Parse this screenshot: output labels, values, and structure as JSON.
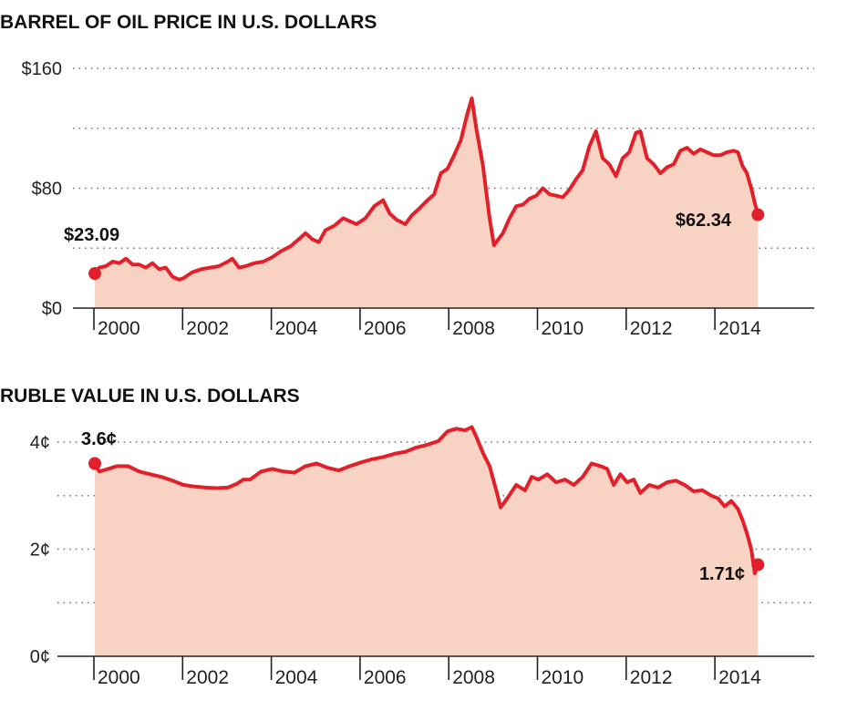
{
  "chart_data": [
    {
      "type": "area",
      "title": "BARREL OF OIL PRICE IN U.S. DOLLARS",
      "xlabel": "",
      "ylabel": "",
      "x_range": [
        2000.0,
        2014.95
      ],
      "ylim": [
        0,
        160
      ],
      "y_ticks": [
        {
          "value": 0,
          "label": "$0"
        },
        {
          "value": 80,
          "label": "$80"
        },
        {
          "value": 160,
          "label": "$160"
        }
      ],
      "y_gridlines": [
        40,
        80,
        120,
        160
      ],
      "x_ticks": [
        {
          "value": 2000,
          "label": "2000"
        },
        {
          "value": 2002,
          "label": "2002"
        },
        {
          "value": 2004,
          "label": "2004"
        },
        {
          "value": 2006,
          "label": "2006"
        },
        {
          "value": 2008,
          "label": "2008"
        },
        {
          "value": 2010,
          "label": "2010"
        },
        {
          "value": 2012,
          "label": "2012"
        },
        {
          "value": 2014,
          "label": "2014"
        }
      ],
      "grid": true,
      "legend": "none",
      "series": [
        {
          "name": "Oil price",
          "color": "#e2202a",
          "fill": "#f8d3c3",
          "x": [
            2000.0,
            2000.1,
            2000.25,
            2000.4,
            2000.55,
            2000.7,
            2000.85,
            2001.0,
            2001.15,
            2001.3,
            2001.45,
            2001.6,
            2001.75,
            2001.9,
            2002.0,
            2002.2,
            2002.4,
            2002.6,
            2002.8,
            2003.0,
            2003.1,
            2003.25,
            2003.4,
            2003.6,
            2003.8,
            2004.0,
            2004.2,
            2004.4,
            2004.6,
            2004.75,
            2004.9,
            2005.05,
            2005.2,
            2005.4,
            2005.6,
            2005.75,
            2005.9,
            2006.1,
            2006.3,
            2006.5,
            2006.65,
            2006.8,
            2007.0,
            2007.15,
            2007.3,
            2007.5,
            2007.65,
            2007.8,
            2007.95,
            2008.1,
            2008.25,
            2008.4,
            2008.5,
            2008.6,
            2008.75,
            2008.9,
            2009.0,
            2009.1,
            2009.2,
            2009.35,
            2009.5,
            2009.65,
            2009.8,
            2009.95,
            2010.1,
            2010.25,
            2010.4,
            2010.55,
            2010.7,
            2010.85,
            2011.0,
            2011.15,
            2011.3,
            2011.45,
            2011.6,
            2011.75,
            2011.9,
            2012.05,
            2012.2,
            2012.3,
            2012.45,
            2012.6,
            2012.75,
            2012.9,
            2013.05,
            2013.2,
            2013.35,
            2013.5,
            2013.65,
            2013.8,
            2013.95,
            2014.1,
            2014.25,
            2014.4,
            2014.5,
            2014.6,
            2014.7,
            2014.8,
            2014.88,
            2014.95
          ],
          "values": [
            23.09,
            27,
            28,
            31,
            30,
            33,
            29,
            29,
            27,
            30,
            26,
            27,
            21,
            19,
            20,
            24,
            26,
            27,
            28,
            31,
            33,
            27,
            28,
            30,
            31,
            34,
            38,
            41,
            46,
            50,
            46,
            44,
            52,
            55,
            60,
            58,
            56,
            60,
            68,
            72,
            63,
            59,
            56,
            62,
            66,
            72,
            76,
            90,
            93,
            102,
            112,
            130,
            140,
            120,
            95,
            60,
            42,
            46,
            50,
            60,
            68,
            69,
            73,
            75,
            80,
            76,
            75,
            74,
            79,
            86,
            92,
            108,
            118,
            100,
            96,
            88,
            100,
            104,
            117,
            118,
            100,
            96,
            90,
            94,
            96,
            105,
            107,
            103,
            106,
            104,
            102,
            102,
            104,
            105,
            104,
            95,
            90,
            80,
            70,
            62.34
          ]
        }
      ],
      "annotations": [
        {
          "text": "$23.09",
          "x": 2000.0,
          "value": 23.09,
          "position": "above-left"
        },
        {
          "text": "$62.34",
          "x": 2014.95,
          "value": 62.34,
          "position": "left"
        }
      ]
    },
    {
      "type": "area",
      "title": "RUBLE VALUE IN U.S. DOLLARS",
      "xlabel": "",
      "ylabel": "",
      "x_range": [
        2000.0,
        2014.95
      ],
      "ylim": [
        0,
        4
      ],
      "y_ticks": [
        {
          "value": 0,
          "label": "0¢"
        },
        {
          "value": 2,
          "label": "2¢"
        },
        {
          "value": 4,
          "label": "4¢"
        }
      ],
      "y_gridlines": [
        1,
        2,
        3,
        4
      ],
      "x_ticks": [
        {
          "value": 2000,
          "label": "2000"
        },
        {
          "value": 2002,
          "label": "2002"
        },
        {
          "value": 2004,
          "label": "2004"
        },
        {
          "value": 2006,
          "label": "2006"
        },
        {
          "value": 2008,
          "label": "2008"
        },
        {
          "value": 2010,
          "label": "2010"
        },
        {
          "value": 2012,
          "label": "2012"
        },
        {
          "value": 2014,
          "label": "2014"
        }
      ],
      "grid": true,
      "legend": "none",
      "series": [
        {
          "name": "Ruble value",
          "color": "#e2202a",
          "fill": "#f8d3c3",
          "x": [
            2000.0,
            2000.1,
            2000.3,
            2000.5,
            2000.75,
            2001.0,
            2001.25,
            2001.5,
            2001.75,
            2002.0,
            2002.25,
            2002.5,
            2002.75,
            2003.0,
            2003.2,
            2003.35,
            2003.5,
            2003.75,
            2004.0,
            2004.25,
            2004.5,
            2004.75,
            2005.0,
            2005.25,
            2005.5,
            2005.75,
            2006.0,
            2006.25,
            2006.5,
            2006.75,
            2007.0,
            2007.25,
            2007.5,
            2007.75,
            2007.95,
            2008.15,
            2008.35,
            2008.5,
            2008.6,
            2008.75,
            2008.9,
            2009.05,
            2009.15,
            2009.3,
            2009.5,
            2009.7,
            2009.85,
            2010.0,
            2010.2,
            2010.4,
            2010.6,
            2010.8,
            2011.0,
            2011.2,
            2011.4,
            2011.55,
            2011.7,
            2011.85,
            2012.0,
            2012.15,
            2012.3,
            2012.5,
            2012.7,
            2012.9,
            2013.1,
            2013.3,
            2013.5,
            2013.7,
            2013.9,
            2014.05,
            2014.2,
            2014.35,
            2014.5,
            2014.6,
            2014.7,
            2014.8,
            2014.88,
            2014.95
          ],
          "values": [
            3.6,
            3.45,
            3.5,
            3.55,
            3.55,
            3.45,
            3.4,
            3.35,
            3.28,
            3.2,
            3.17,
            3.15,
            3.14,
            3.15,
            3.22,
            3.3,
            3.3,
            3.45,
            3.5,
            3.45,
            3.43,
            3.55,
            3.6,
            3.52,
            3.47,
            3.55,
            3.62,
            3.68,
            3.72,
            3.78,
            3.82,
            3.9,
            3.95,
            4.02,
            4.2,
            4.25,
            4.22,
            4.28,
            4.1,
            3.8,
            3.55,
            3.1,
            2.78,
            2.95,
            3.2,
            3.1,
            3.35,
            3.3,
            3.4,
            3.25,
            3.3,
            3.2,
            3.35,
            3.6,
            3.55,
            3.5,
            3.2,
            3.4,
            3.25,
            3.3,
            3.05,
            3.2,
            3.15,
            3.25,
            3.28,
            3.2,
            3.08,
            3.1,
            3.0,
            2.95,
            2.8,
            2.9,
            2.75,
            2.55,
            2.3,
            2.0,
            1.55,
            1.71
          ]
        }
      ],
      "annotations": [
        {
          "text": "3.6¢",
          "x": 2000.0,
          "value": 3.6,
          "position": "above-right"
        },
        {
          "text": "1.71¢",
          "x": 2014.95,
          "value": 1.71,
          "position": "left"
        }
      ]
    }
  ]
}
